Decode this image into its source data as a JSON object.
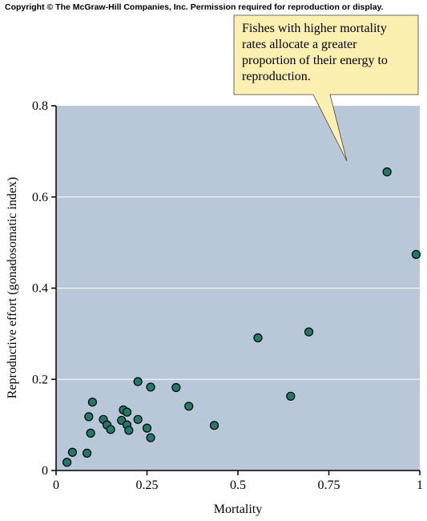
{
  "copyright": "Copyright © The McGraw-Hill Companies, Inc. Permission required for reproduction or display.",
  "chart_data": {
    "type": "scatter",
    "xlabel": "Mortality",
    "ylabel": "Reproductive effort (gonadosomatic index)",
    "xlim": [
      0,
      1
    ],
    "ylim": [
      0,
      0.8
    ],
    "x_ticks": [
      "0",
      "0.25",
      "0.5",
      "0.75",
      "1"
    ],
    "y_ticks": [
      "0",
      "0.2",
      "0.4",
      "0.6",
      "0.8"
    ],
    "grid": "horizontal",
    "colors": {
      "plot_background": "#b9c8d8",
      "point_fill": "#1f7a6c",
      "callout_fill": "#fbf0b0"
    },
    "annotation": {
      "lines": [
        "Fishes with higher mortality",
        "rates allocate a greater",
        "proportion of their energy to",
        "reproduction."
      ]
    },
    "points": [
      {
        "x": 0.03,
        "y": 0.018
      },
      {
        "x": 0.045,
        "y": 0.04
      },
      {
        "x": 0.085,
        "y": 0.038
      },
      {
        "x": 0.09,
        "y": 0.118
      },
      {
        "x": 0.095,
        "y": 0.082
      },
      {
        "x": 0.1,
        "y": 0.15
      },
      {
        "x": 0.13,
        "y": 0.112
      },
      {
        "x": 0.14,
        "y": 0.1
      },
      {
        "x": 0.15,
        "y": 0.09
      },
      {
        "x": 0.18,
        "y": 0.11
      },
      {
        "x": 0.185,
        "y": 0.133
      },
      {
        "x": 0.195,
        "y": 0.1
      },
      {
        "x": 0.195,
        "y": 0.128
      },
      {
        "x": 0.2,
        "y": 0.088
      },
      {
        "x": 0.225,
        "y": 0.112
      },
      {
        "x": 0.225,
        "y": 0.195
      },
      {
        "x": 0.25,
        "y": 0.093
      },
      {
        "x": 0.26,
        "y": 0.183
      },
      {
        "x": 0.26,
        "y": 0.072
      },
      {
        "x": 0.33,
        "y": 0.182
      },
      {
        "x": 0.365,
        "y": 0.141
      },
      {
        "x": 0.435,
        "y": 0.099
      },
      {
        "x": 0.555,
        "y": 0.291
      },
      {
        "x": 0.645,
        "y": 0.163
      },
      {
        "x": 0.695,
        "y": 0.304
      },
      {
        "x": 0.91,
        "y": 0.655
      },
      {
        "x": 0.99,
        "y": 0.474
      }
    ]
  }
}
